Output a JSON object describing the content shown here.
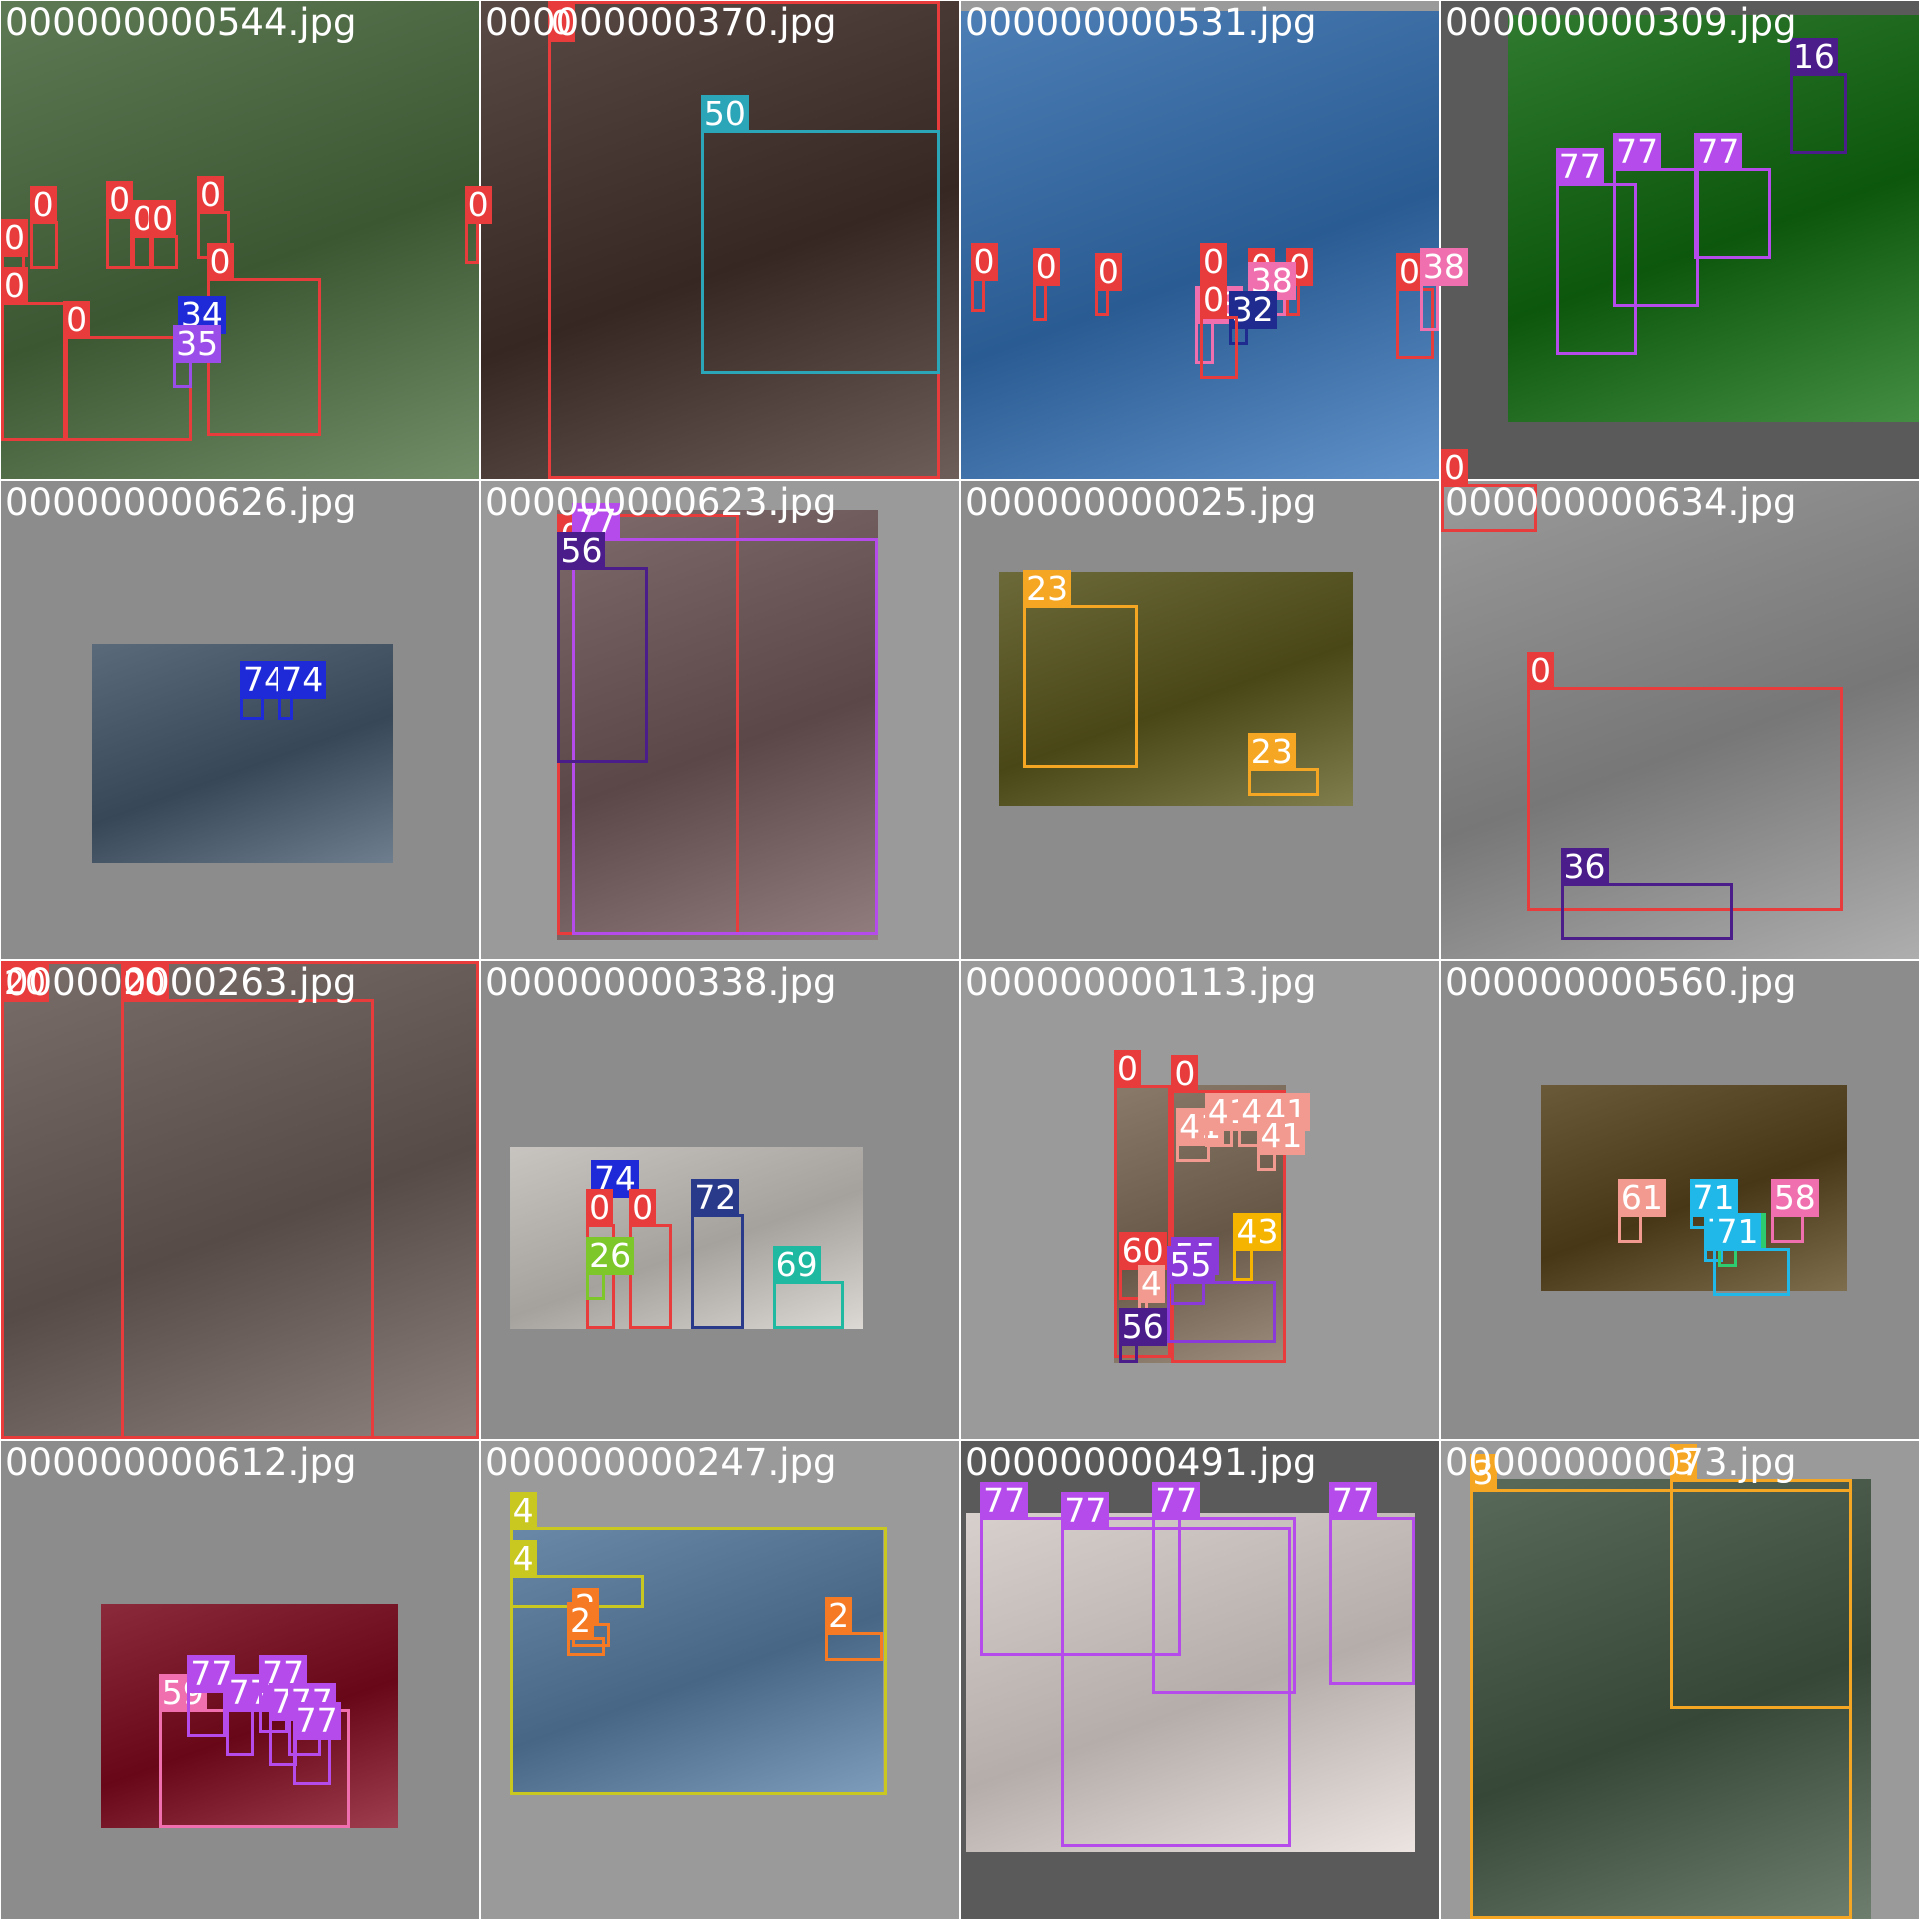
{
  "mosaic": {
    "columns": 4,
    "rows": 4,
    "tiles": [
      {
        "file": "000000000544.jpg",
        "bg": "#9a9a9a",
        "photo": {
          "l": 0,
          "t": 0,
          "w": 1,
          "h": 1,
          "tone": "#5e7a55",
          "scene": "baseball stadium crowd"
        },
        "boxes": [
          {
            "label": "0",
            "color": "#e83c3c",
            "l": 0.06,
            "t": 0.46,
            "w": 0.06,
            "h": 0.1
          },
          {
            "label": "0",
            "color": "#e83c3c",
            "l": 0.22,
            "t": 0.45,
            "w": 0.06,
            "h": 0.11
          },
          {
            "label": "0",
            "color": "#e83c3c",
            "l": 0.27,
            "t": 0.49,
            "w": 0.05,
            "h": 0.07
          },
          {
            "label": "0",
            "color": "#e83c3c",
            "l": 0.31,
            "t": 0.49,
            "w": 0.06,
            "h": 0.07
          },
          {
            "label": "0",
            "color": "#e83c3c",
            "l": 0.41,
            "t": 0.44,
            "w": 0.07,
            "h": 0.1
          },
          {
            "label": "0",
            "color": "#e83c3c",
            "l": 0.97,
            "t": 0.46,
            "w": 0.03,
            "h": 0.09
          },
          {
            "label": "0",
            "color": "#e83c3c",
            "l": 0.0,
            "t": 0.53,
            "w": 0.05,
            "h": 0.08
          },
          {
            "label": "0",
            "color": "#e83c3c",
            "l": 0.0,
            "t": 0.63,
            "w": 0.14,
            "h": 0.29
          },
          {
            "label": "0",
            "color": "#e83c3c",
            "l": 0.13,
            "t": 0.7,
            "w": 0.27,
            "h": 0.22
          },
          {
            "label": "0",
            "color": "#e83c3c",
            "l": 0.43,
            "t": 0.58,
            "w": 0.24,
            "h": 0.33
          },
          {
            "label": "34",
            "color": "#1e2ad8",
            "l": 0.37,
            "t": 0.69,
            "w": 0.04,
            "h": 0.06
          },
          {
            "label": "35",
            "color": "#9a4de8",
            "l": 0.36,
            "t": 0.75,
            "w": 0.04,
            "h": 0.06
          }
        ]
      },
      {
        "file": "000000000370.jpg",
        "bg": "#9a9a9a",
        "photo": {
          "l": 0,
          "t": 0,
          "w": 1,
          "h": 1,
          "tone": "#5a4a46",
          "scene": "child holding broccoli"
        },
        "boxes": [
          {
            "label": "0",
            "color": "#e83c3c",
            "l": 0.14,
            "t": 0.0,
            "w": 0.82,
            "h": 1.0
          },
          {
            "label": "50",
            "color": "#2aa6b8",
            "l": 0.46,
            "t": 0.27,
            "w": 0.5,
            "h": 0.51
          }
        ]
      },
      {
        "file": "000000000531.jpg",
        "bg": "#9a9a9a",
        "photo": {
          "l": 0,
          "t": 0.02,
          "w": 1,
          "h": 0.98,
          "tone": "#4d7fb6",
          "scene": "tennis court"
        },
        "boxes": [
          {
            "label": "0",
            "color": "#e83c3c",
            "l": 0.02,
            "t": 0.58,
            "w": 0.03,
            "h": 0.07
          },
          {
            "label": "0",
            "color": "#e83c3c",
            "l": 0.15,
            "t": 0.59,
            "w": 0.03,
            "h": 0.08
          },
          {
            "label": "0",
            "color": "#e83c3c",
            "l": 0.28,
            "t": 0.6,
            "w": 0.03,
            "h": 0.06
          },
          {
            "label": "0",
            "color": "#e83c3c",
            "l": 0.5,
            "t": 0.58,
            "w": 0.03,
            "h": 0.06
          },
          {
            "label": "0",
            "color": "#e83c3c",
            "l": 0.6,
            "t": 0.59,
            "w": 0.03,
            "h": 0.07
          },
          {
            "label": "0",
            "color": "#e83c3c",
            "l": 0.68,
            "t": 0.59,
            "w": 0.03,
            "h": 0.07
          },
          {
            "label": "0",
            "color": "#e83c3c",
            "l": 0.91,
            "t": 0.6,
            "w": 0.08,
            "h": 0.15
          },
          {
            "label": "38",
            "color": "#f06fae",
            "l": 0.96,
            "t": 0.59,
            "w": 0.04,
            "h": 0.1
          },
          {
            "label": "38",
            "color": "#f06fae",
            "l": 0.6,
            "t": 0.62,
            "w": 0.08,
            "h": 0.04
          },
          {
            "label": "38",
            "color": "#f06fae",
            "l": 0.49,
            "t": 0.67,
            "w": 0.04,
            "h": 0.09
          },
          {
            "label": "32",
            "color": "#1f2b8f",
            "l": 0.56,
            "t": 0.68,
            "w": 0.04,
            "h": 0.04
          },
          {
            "label": "0",
            "color": "#e83c3c",
            "l": 0.5,
            "t": 0.66,
            "w": 0.08,
            "h": 0.13
          }
        ]
      },
      {
        "file": "000000000309.jpg",
        "bg": "#9a9a9a",
        "photo": {
          "l": 0.14,
          "t": 0.03,
          "w": 0.86,
          "h": 0.85,
          "tone": "#2f7a2f",
          "scene": "teddy bears on grass"
        },
        "boxes": [
          {
            "label": "16",
            "color": "#4b1d8a",
            "l": 0.73,
            "t": 0.15,
            "w": 0.12,
            "h": 0.17
          },
          {
            "label": "77",
            "color": "#b44bea",
            "l": 0.24,
            "t": 0.38,
            "w": 0.17,
            "h": 0.36
          },
          {
            "label": "77",
            "color": "#b44bea",
            "l": 0.36,
            "t": 0.35,
            "w": 0.18,
            "h": 0.29
          },
          {
            "label": "77",
            "color": "#b44bea",
            "l": 0.53,
            "t": 0.35,
            "w": 0.16,
            "h": 0.19
          },
          {
            "label": "0",
            "color": "#e83c3c",
            "l": 0.0,
            "t": 1.01,
            "w": 0.2,
            "h": 0.1
          }
        ]
      },
      {
        "file": "000000000626.jpg",
        "bg": "#9a9a9a",
        "photo": {
          "l": 0.19,
          "t": 0.34,
          "w": 0.63,
          "h": 0.46,
          "tone": "#5a6a7a",
          "scene": "city buildings"
        },
        "boxes": [
          {
            "label": "74",
            "color": "#1e2ad8",
            "l": 0.5,
            "t": 0.45,
            "w": 0.05,
            "h": 0.05
          },
          {
            "label": "74",
            "color": "#1e2ad8",
            "l": 0.58,
            "t": 0.45,
            "w": 0.03,
            "h": 0.05
          }
        ]
      },
      {
        "file": "000000000623.jpg",
        "bg": "#9a9a9a",
        "photo": {
          "l": 0.16,
          "t": 0.06,
          "w": 0.67,
          "h": 0.9,
          "tone": "#7e6a6a",
          "scene": "woman with teddy bear"
        },
        "boxes": [
          {
            "label": "0",
            "color": "#e83c3c",
            "l": 0.16,
            "t": 0.07,
            "w": 0.38,
            "h": 0.88
          },
          {
            "label": "77",
            "color": "#b44bea",
            "l": 0.19,
            "t": 0.12,
            "w": 0.64,
            "h": 0.83
          },
          {
            "label": "56",
            "color": "#4b1d8a",
            "l": 0.16,
            "t": 0.18,
            "w": 0.19,
            "h": 0.41
          }
        ]
      },
      {
        "file": "000000000025.jpg",
        "bg": "#9a9a9a",
        "photo": {
          "l": 0.08,
          "t": 0.19,
          "w": 0.74,
          "h": 0.49,
          "tone": "#6d6a3a",
          "scene": "giraffes"
        },
        "boxes": [
          {
            "label": "23",
            "color": "#f5a623",
            "l": 0.13,
            "t": 0.26,
            "w": 0.24,
            "h": 0.34
          },
          {
            "label": "23",
            "color": "#f5a623",
            "l": 0.6,
            "t": 0.6,
            "w": 0.15,
            "h": 0.06
          }
        ]
      },
      {
        "file": "000000000634.jpg",
        "bg": "#9a9a9a",
        "photo": {
          "l": 0,
          "t": 0,
          "w": 1,
          "h": 1,
          "tone": "#9a9a9a",
          "scene": "skateboarder in bowl"
        },
        "boxes": [
          {
            "label": "0",
            "color": "#e83c3c",
            "l": 0.18,
            "t": 0.43,
            "w": 0.66,
            "h": 0.47
          },
          {
            "label": "36",
            "color": "#4b1d8a",
            "l": 0.25,
            "t": 0.84,
            "w": 0.36,
            "h": 0.12
          }
        ]
      },
      {
        "file": "000000000263.jpg",
        "bg": "#9a9a9a",
        "photo": {
          "l": 0,
          "t": 0,
          "w": 1,
          "h": 1,
          "tone": "#7a6e6a",
          "scene": "elephants"
        },
        "boxes": [
          {
            "label": "20",
            "color": "#e83c3c",
            "l": 0.0,
            "t": 0.0,
            "w": 1.0,
            "h": 1.0
          },
          {
            "label": "20",
            "color": "#e83c3c",
            "l": 0.25,
            "t": 0.08,
            "w": 0.53,
            "h": 0.92
          }
        ]
      },
      {
        "file": "000000000338.jpg",
        "bg": "#9a9a9a",
        "photo": {
          "l": 0.06,
          "t": 0.39,
          "w": 0.74,
          "h": 0.38,
          "tone": "#c8c4c0",
          "scene": "kitchen"
        },
        "boxes": [
          {
            "label": "74",
            "color": "#1e2ad8",
            "l": 0.23,
            "t": 0.49,
            "w": 0.03,
            "h": 0.03
          },
          {
            "label": "0",
            "color": "#e83c3c",
            "l": 0.22,
            "t": 0.55,
            "w": 0.06,
            "h": 0.22
          },
          {
            "label": "0",
            "color": "#e83c3c",
            "l": 0.31,
            "t": 0.55,
            "w": 0.09,
            "h": 0.22
          },
          {
            "label": "72",
            "color": "#2a3a8a",
            "l": 0.44,
            "t": 0.53,
            "w": 0.11,
            "h": 0.24
          },
          {
            "label": "26",
            "color": "#7ec72a",
            "l": 0.22,
            "t": 0.65,
            "w": 0.04,
            "h": 0.06
          },
          {
            "label": "69",
            "color": "#1fb8a0",
            "l": 0.61,
            "t": 0.67,
            "w": 0.15,
            "h": 0.1
          }
        ]
      },
      {
        "file": "000000000113.jpg",
        "bg": "#9a9a9a",
        "photo": {
          "l": 0.32,
          "t": 0.26,
          "w": 0.36,
          "h": 0.58,
          "tone": "#8a7a6a",
          "scene": "people at table with cake"
        },
        "boxes": [
          {
            "label": "0",
            "color": "#e83c3c",
            "l": 0.32,
            "t": 0.26,
            "w": 0.12,
            "h": 0.57
          },
          {
            "label": "0",
            "color": "#e83c3c",
            "l": 0.44,
            "t": 0.27,
            "w": 0.24,
            "h": 0.57
          },
          {
            "label": "41",
            "color": "#f29a8f",
            "l": 0.45,
            "t": 0.38,
            "w": 0.07,
            "h": 0.04
          },
          {
            "label": "41",
            "color": "#f29a8f",
            "l": 0.51,
            "t": 0.35,
            "w": 0.06,
            "h": 0.04
          },
          {
            "label": "41",
            "color": "#f29a8f",
            "l": 0.58,
            "t": 0.35,
            "w": 0.07,
            "h": 0.04
          },
          {
            "label": "41",
            "color": "#f29a8f",
            "l": 0.63,
            "t": 0.35,
            "w": 0.05,
            "h": 0.04
          },
          {
            "label": "41",
            "color": "#f29a8f",
            "l": 0.62,
            "t": 0.4,
            "w": 0.04,
            "h": 0.04
          },
          {
            "label": "43",
            "color": "#f5b400",
            "l": 0.57,
            "t": 0.6,
            "w": 0.04,
            "h": 0.07
          },
          {
            "label": "60",
            "color": "#e83c3c",
            "l": 0.33,
            "t": 0.64,
            "w": 0.06,
            "h": 0.07
          },
          {
            "label": "55",
            "color": "#8a3ad8",
            "l": 0.44,
            "t": 0.65,
            "w": 0.07,
            "h": 0.07
          },
          {
            "label": "4",
            "color": "#f29a8f",
            "l": 0.37,
            "t": 0.71,
            "w": 0.02,
            "h": 0.04
          },
          {
            "label": "55",
            "color": "#8a3ad8",
            "l": 0.43,
            "t": 0.67,
            "w": 0.23,
            "h": 0.13
          },
          {
            "label": "56",
            "color": "#4b1d8a",
            "l": 0.33,
            "t": 0.8,
            "w": 0.04,
            "h": 0.04
          }
        ]
      },
      {
        "file": "000000000560.jpg",
        "bg": "#9a9a9a",
        "photo": {
          "l": 0.21,
          "t": 0.26,
          "w": 0.64,
          "h": 0.43,
          "tone": "#6a5a3a",
          "scene": "bathroom"
        },
        "boxes": [
          {
            "label": "61",
            "color": "#f29a8f",
            "l": 0.37,
            "t": 0.53,
            "w": 0.05,
            "h": 0.06
          },
          {
            "label": "71",
            "color": "#1fb8e8",
            "l": 0.52,
            "t": 0.53,
            "w": 0.06,
            "h": 0.03
          },
          {
            "label": "71",
            "color": "#1fb8e8",
            "l": 0.55,
            "t": 0.6,
            "w": 0.04,
            "h": 0.03
          },
          {
            "label": "67",
            "color": "#2ecc71",
            "l": 0.58,
            "t": 0.6,
            "w": 0.04,
            "h": 0.04
          },
          {
            "label": "58",
            "color": "#f06fae",
            "l": 0.69,
            "t": 0.53,
            "w": 0.07,
            "h": 0.06
          },
          {
            "label": "71",
            "color": "#1fb8e8",
            "l": 0.57,
            "t": 0.6,
            "w": 0.16,
            "h": 0.1
          }
        ]
      },
      {
        "file": "000000000612.jpg",
        "bg": "#9a9a9a",
        "photo": {
          "l": 0.21,
          "t": 0.34,
          "w": 0.62,
          "h": 0.47,
          "tone": "#8a2a3a",
          "scene": "festive decorations and teddies"
        },
        "boxes": [
          {
            "label": "59",
            "color": "#f06fae",
            "l": 0.33,
            "t": 0.56,
            "w": 0.4,
            "h": 0.25
          },
          {
            "label": "77",
            "color": "#b44bea",
            "l": 0.39,
            "t": 0.52,
            "w": 0.08,
            "h": 0.1
          },
          {
            "label": "77",
            "color": "#b44bea",
            "l": 0.47,
            "t": 0.56,
            "w": 0.06,
            "h": 0.1
          },
          {
            "label": "77",
            "color": "#b44bea",
            "l": 0.54,
            "t": 0.52,
            "w": 0.06,
            "h": 0.09
          },
          {
            "label": "77",
            "color": "#b44bea",
            "l": 0.56,
            "t": 0.58,
            "w": 0.06,
            "h": 0.1
          },
          {
            "label": "77",
            "color": "#b44bea",
            "l": 0.6,
            "t": 0.58,
            "w": 0.07,
            "h": 0.08
          },
          {
            "label": "77",
            "color": "#b44bea",
            "l": 0.61,
            "t": 0.62,
            "w": 0.08,
            "h": 0.1
          }
        ]
      },
      {
        "file": "000000000247.jpg",
        "bg": "#9a9a9a",
        "photo": {
          "l": 0.06,
          "t": 0.18,
          "w": 0.78,
          "h": 0.56,
          "tone": "#6a88a8",
          "scene": "small airplane on tarmac"
        },
        "boxes": [
          {
            "label": "4",
            "color": "#c8c820",
            "l": 0.06,
            "t": 0.18,
            "w": 0.79,
            "h": 0.56
          },
          {
            "label": "4",
            "color": "#c8c820",
            "l": 0.06,
            "t": 0.28,
            "w": 0.28,
            "h": 0.07
          },
          {
            "label": "2",
            "color": "#f57a23",
            "l": 0.19,
            "t": 0.38,
            "w": 0.08,
            "h": 0.05
          },
          {
            "label": "2",
            "color": "#f57a23",
            "l": 0.18,
            "t": 0.41,
            "w": 0.08,
            "h": 0.04
          },
          {
            "label": "2",
            "color": "#f57a23",
            "l": 0.72,
            "t": 0.4,
            "w": 0.12,
            "h": 0.06
          }
        ]
      },
      {
        "file": "000000000491.jpg",
        "bg": "#9a9a9a",
        "photo": {
          "l": 0.01,
          "t": 0.15,
          "w": 0.94,
          "h": 0.71,
          "tone": "#d8d0cc",
          "scene": "white teddy bears"
        },
        "boxes": [
          {
            "label": "77",
            "color": "#b44bea",
            "l": 0.04,
            "t": 0.16,
            "w": 0.42,
            "h": 0.29
          },
          {
            "label": "77",
            "color": "#b44bea",
            "l": 0.21,
            "t": 0.18,
            "w": 0.48,
            "h": 0.67
          },
          {
            "label": "77",
            "color": "#b44bea",
            "l": 0.4,
            "t": 0.16,
            "w": 0.3,
            "h": 0.37
          },
          {
            "label": "77",
            "color": "#b44bea",
            "l": 0.77,
            "t": 0.16,
            "w": 0.18,
            "h": 0.35
          }
        ]
      },
      {
        "file": "000000000073.jpg",
        "bg": "#9a9a9a",
        "photo": {
          "l": 0.06,
          "t": 0.08,
          "w": 0.84,
          "h": 0.92,
          "tone": "#5a6a5a",
          "scene": "vintage motorcycle"
        },
        "boxes": [
          {
            "label": "3",
            "color": "#f5a623",
            "l": 0.06,
            "t": 0.1,
            "w": 0.8,
            "h": 0.9
          },
          {
            "label": "3",
            "color": "#f5a623",
            "l": 0.48,
            "t": 0.08,
            "w": 0.38,
            "h": 0.48
          }
        ]
      }
    ]
  }
}
